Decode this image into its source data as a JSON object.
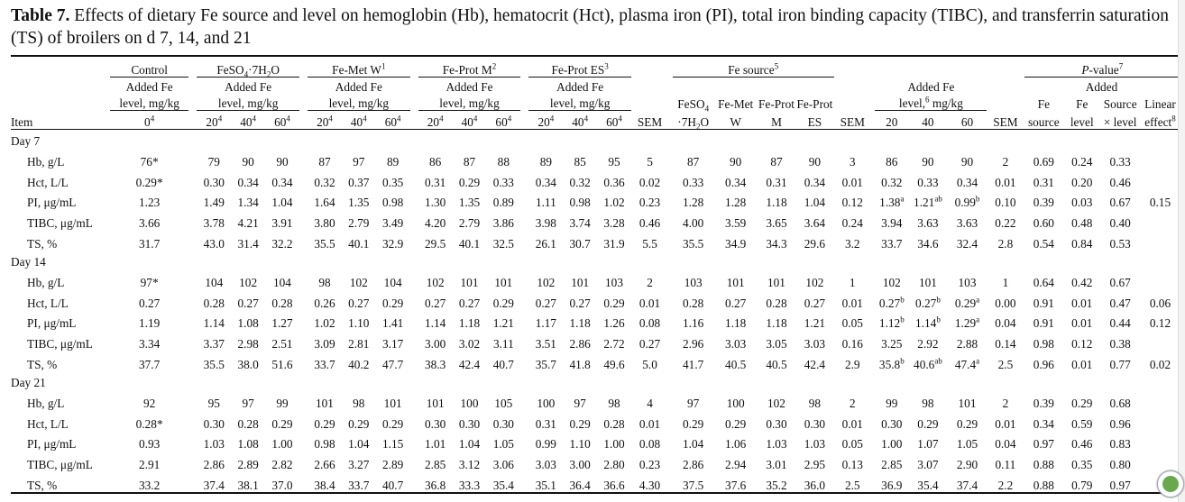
{
  "caption": {
    "label": "Table 7.",
    "text": " Effects of dietary Fe source and level on hemoglobin (Hb), hematocrit (Hct), plasma iron (PI), total iron binding capacity (TIBC), and transferrin saturation (TS) of broilers on d 7, 14, and 21"
  },
  "header": {
    "control": "Control",
    "feso4": "FeSO",
    "feso4_sub": "4",
    "feso4_rest": "·7H",
    "feso4_sub2": "2",
    "feso4_end": "O",
    "femet": "Fe-Met W",
    "femet_sup": "1",
    "feprotm": "Fe-Prot M",
    "feprotm_sup": "2",
    "feprotes": "Fe-Prot ES",
    "feprotes_sup": "3",
    "fesource": "Fe source",
    "fesource_sup": "5",
    "pvalue": "P",
    "pvalue_rest": "-value",
    "pvalue_sup": "7",
    "added_fe": "Added Fe",
    "level_unit": "level, mg/kg",
    "level_unit_sup": "",
    "level6_a": "level,",
    "level6_sup": "6",
    "level6_b": " mg/kg",
    "added": "Added",
    "item": "Item",
    "ctrl_level": "0",
    "ctrl_level_sup": "4",
    "lvl20": "20",
    "lvl40": "40",
    "lvl60": "60",
    "lvl_sup": "4",
    "sem": "SEM",
    "src_feso4_a": "FeSO",
    "src_feso4_sub": "4",
    "src_feso4_b": "·7H",
    "src_feso4_sub2": "2",
    "src_feso4_c": "O",
    "src_femet_a": "Fe-Met",
    "src_femet_b": "W",
    "src_feprot_a": "Fe-Prot",
    "src_feprot_m": "M",
    "src_feprot_es": "ES",
    "pv_fe_a": "Fe",
    "pv_fe_b": "source",
    "pv_lvl_a": "Fe",
    "pv_lvl_b": "level",
    "pv_int_a": "Source",
    "pv_int_b": "× level",
    "pv_lin_a": "Linear",
    "pv_lin_b": "effect",
    "pv_lin_sup": "8"
  },
  "days": [
    {
      "label": "Day 7",
      "rows": [
        {
          "item": "Hb, g/L",
          "c": "76*",
          "a": [
            "79",
            "90",
            "90"
          ],
          "b": [
            "87",
            "97",
            "89"
          ],
          "m": [
            "86",
            "87",
            "88"
          ],
          "e": [
            "89",
            "85",
            "95"
          ],
          "sem1": "5",
          "src": [
            "87",
            "90",
            "87",
            "90"
          ],
          "sem2": "3",
          "lv": [
            [
              "86",
              ""
            ],
            [
              "90",
              ""
            ],
            [
              "90",
              ""
            ]
          ],
          "sem3": "2",
          "p": [
            "0.69",
            "0.24",
            "0.33",
            ""
          ]
        },
        {
          "item": "Hct, L/L",
          "c": "0.29*",
          "a": [
            "0.30",
            "0.34",
            "0.34"
          ],
          "b": [
            "0.32",
            "0.37",
            "0.35"
          ],
          "m": [
            "0.31",
            "0.29",
            "0.33"
          ],
          "e": [
            "0.34",
            "0.32",
            "0.36"
          ],
          "sem1": "0.02",
          "src": [
            "0.33",
            "0.34",
            "0.31",
            "0.34"
          ],
          "sem2": "0.01",
          "lv": [
            [
              "0.32",
              ""
            ],
            [
              "0.33",
              ""
            ],
            [
              "0.34",
              ""
            ]
          ],
          "sem3": "0.01",
          "p": [
            "0.31",
            "0.20",
            "0.46",
            ""
          ]
        },
        {
          "item": "PI, μg/mL",
          "c": "1.23",
          "a": [
            "1.49",
            "1.34",
            "1.04"
          ],
          "b": [
            "1.64",
            "1.35",
            "0.98"
          ],
          "m": [
            "1.30",
            "1.35",
            "0.89"
          ],
          "e": [
            "1.11",
            "0.98",
            "1.02"
          ],
          "sem1": "0.23",
          "src": [
            "1.28",
            "1.28",
            "1.18",
            "1.04"
          ],
          "sem2": "0.12",
          "lv": [
            [
              "1.38",
              "a"
            ],
            [
              "1.21",
              "ab"
            ],
            [
              "0.99",
              "b"
            ]
          ],
          "sem3": "0.10",
          "p": [
            "0.39",
            "0.03",
            "0.67",
            "0.15"
          ]
        },
        {
          "item": "TIBC, μg/mL",
          "c": "3.66",
          "a": [
            "3.78",
            "4.21",
            "3.91"
          ],
          "b": [
            "3.80",
            "2.79",
            "3.49"
          ],
          "m": [
            "4.20",
            "2.79",
            "3.86"
          ],
          "e": [
            "3.98",
            "3.74",
            "3.28"
          ],
          "sem1": "0.46",
          "src": [
            "4.00",
            "3.59",
            "3.65",
            "3.64"
          ],
          "sem2": "0.24",
          "lv": [
            [
              "3.94",
              ""
            ],
            [
              "3.63",
              ""
            ],
            [
              "3.63",
              ""
            ]
          ],
          "sem3": "0.22",
          "p": [
            "0.60",
            "0.48",
            "0.40",
            ""
          ]
        },
        {
          "item": "TS, %",
          "c": "31.7",
          "a": [
            "43.0",
            "31.4",
            "32.2"
          ],
          "b": [
            "35.5",
            "40.1",
            "32.9"
          ],
          "m": [
            "29.5",
            "40.1",
            "32.5"
          ],
          "e": [
            "26.1",
            "30.7",
            "31.9"
          ],
          "sem1": "5.5",
          "src": [
            "35.5",
            "34.9",
            "34.3",
            "29.6"
          ],
          "sem2": "3.2",
          "lv": [
            [
              "33.7",
              ""
            ],
            [
              "34.6",
              ""
            ],
            [
              "32.4",
              ""
            ]
          ],
          "sem3": "2.8",
          "p": [
            "0.54",
            "0.84",
            "0.53",
            ""
          ]
        }
      ]
    },
    {
      "label": "Day 14",
      "rows": [
        {
          "item": "Hb, g/L",
          "c": "97*",
          "a": [
            "104",
            "102",
            "104"
          ],
          "b": [
            "98",
            "102",
            "104"
          ],
          "m": [
            "102",
            "101",
            "101"
          ],
          "e": [
            "102",
            "101",
            "103"
          ],
          "sem1": "2",
          "src": [
            "103",
            "101",
            "101",
            "102"
          ],
          "sem2": "1",
          "lv": [
            [
              "102",
              ""
            ],
            [
              "101",
              ""
            ],
            [
              "103",
              ""
            ]
          ],
          "sem3": "1",
          "p": [
            "0.64",
            "0.42",
            "0.67",
            ""
          ]
        },
        {
          "item": "Hct, L/L",
          "c": "0.27",
          "a": [
            "0.28",
            "0.27",
            "0.28"
          ],
          "b": [
            "0.26",
            "0.27",
            "0.29"
          ],
          "m": [
            "0.27",
            "0.27",
            "0.29"
          ],
          "e": [
            "0.27",
            "0.27",
            "0.29"
          ],
          "sem1": "0.01",
          "src": [
            "0.28",
            "0.27",
            "0.28",
            "0.27"
          ],
          "sem2": "0.01",
          "lv": [
            [
              "0.27",
              "b"
            ],
            [
              "0.27",
              "b"
            ],
            [
              "0.29",
              "a"
            ]
          ],
          "sem3": "0.00",
          "p": [
            "0.91",
            "0.01",
            "0.47",
            "0.06"
          ]
        },
        {
          "item": "PI, μg/mL",
          "c": "1.19",
          "a": [
            "1.14",
            "1.08",
            "1.27"
          ],
          "b": [
            "1.02",
            "1.10",
            "1.41"
          ],
          "m": [
            "1.14",
            "1.18",
            "1.21"
          ],
          "e": [
            "1.17",
            "1.18",
            "1.26"
          ],
          "sem1": "0.08",
          "src": [
            "1.16",
            "1.18",
            "1.18",
            "1.21"
          ],
          "sem2": "0.05",
          "lv": [
            [
              "1.12",
              "b"
            ],
            [
              "1.14",
              "b"
            ],
            [
              "1.29",
              "a"
            ]
          ],
          "sem3": "0.04",
          "p": [
            "0.91",
            "0.01",
            "0.44",
            "0.12"
          ]
        },
        {
          "item": "TIBC, μg/mL",
          "c": "3.34",
          "a": [
            "3.37",
            "2.98",
            "2.51"
          ],
          "b": [
            "3.09",
            "2.81",
            "3.17"
          ],
          "m": [
            "3.00",
            "3.02",
            "3.11"
          ],
          "e": [
            "3.51",
            "2.86",
            "2.72"
          ],
          "sem1": "0.27",
          "src": [
            "2.96",
            "3.03",
            "3.05",
            "3.03"
          ],
          "sem2": "0.16",
          "lv": [
            [
              "3.25",
              ""
            ],
            [
              "2.92",
              ""
            ],
            [
              "2.88",
              ""
            ]
          ],
          "sem3": "0.14",
          "p": [
            "0.98",
            "0.12",
            "0.38",
            ""
          ]
        },
        {
          "item": "TS, %",
          "c": "37.7",
          "a": [
            "35.5",
            "38.0",
            "51.6"
          ],
          "b": [
            "33.7",
            "40.2",
            "47.7"
          ],
          "m": [
            "38.3",
            "42.4",
            "40.7"
          ],
          "e": [
            "35.7",
            "41.8",
            "49.6"
          ],
          "sem1": "5.0",
          "src": [
            "41.7",
            "40.5",
            "40.5",
            "42.4"
          ],
          "sem2": "2.9",
          "lv": [
            [
              "35.8",
              "b"
            ],
            [
              "40.6",
              "ab"
            ],
            [
              "47.4",
              "a"
            ]
          ],
          "sem3": "2.5",
          "p": [
            "0.96",
            "0.01",
            "0.77",
            "0.02"
          ]
        }
      ]
    },
    {
      "label": "Day 21",
      "rows": [
        {
          "item": "Hb, g/L",
          "c": "92",
          "a": [
            "95",
            "97",
            "99"
          ],
          "b": [
            "101",
            "98",
            "101"
          ],
          "m": [
            "101",
            "100",
            "105"
          ],
          "e": [
            "100",
            "97",
            "98"
          ],
          "sem1": "4",
          "src": [
            "97",
            "100",
            "102",
            "98"
          ],
          "sem2": "2",
          "lv": [
            [
              "99",
              ""
            ],
            [
              "98",
              ""
            ],
            [
              "101",
              ""
            ]
          ],
          "sem3": "2",
          "p": [
            "0.39",
            "0.29",
            "0.68",
            ""
          ]
        },
        {
          "item": "Hct, L/L",
          "c": "0.28*",
          "a": [
            "0.30",
            "0.28",
            "0.29"
          ],
          "b": [
            "0.29",
            "0.29",
            "0.29"
          ],
          "m": [
            "0.30",
            "0.30",
            "0.30"
          ],
          "e": [
            "0.31",
            "0.29",
            "0.28"
          ],
          "sem1": "0.01",
          "src": [
            "0.29",
            "0.29",
            "0.30",
            "0.30"
          ],
          "sem2": "0.01",
          "lv": [
            [
              "0.30",
              ""
            ],
            [
              "0.29",
              ""
            ],
            [
              "0.29",
              ""
            ]
          ],
          "sem3": "0.01",
          "p": [
            "0.34",
            "0.59",
            "0.96",
            ""
          ]
        },
        {
          "item": "PI, μg/mL",
          "c": "0.93",
          "a": [
            "1.03",
            "1.08",
            "1.00"
          ],
          "b": [
            "0.98",
            "1.04",
            "1.15"
          ],
          "m": [
            "1.01",
            "1.04",
            "1.05"
          ],
          "e": [
            "0.99",
            "1.10",
            "1.00"
          ],
          "sem1": "0.08",
          "src": [
            "1.04",
            "1.06",
            "1.03",
            "1.03"
          ],
          "sem2": "0.05",
          "lv": [
            [
              "1.00",
              ""
            ],
            [
              "1.07",
              ""
            ],
            [
              "1.05",
              ""
            ]
          ],
          "sem3": "0.04",
          "p": [
            "0.97",
            "0.46",
            "0.83",
            ""
          ]
        },
        {
          "item": "TIBC, μg/mL",
          "c": "2.91",
          "a": [
            "2.86",
            "2.89",
            "2.82"
          ],
          "b": [
            "2.66",
            "3.27",
            "2.89"
          ],
          "m": [
            "2.85",
            "3.12",
            "3.06"
          ],
          "e": [
            "3.03",
            "3.00",
            "2.80"
          ],
          "sem1": "0.23",
          "src": [
            "2.86",
            "2.94",
            "3.01",
            "2.95"
          ],
          "sem2": "0.13",
          "lv": [
            [
              "2.85",
              ""
            ],
            [
              "3.07",
              ""
            ],
            [
              "2.90",
              ""
            ]
          ],
          "sem3": "0.11",
          "p": [
            "0.88",
            "0.35",
            "0.80",
            ""
          ]
        },
        {
          "item": "TS, %",
          "c": "33.2",
          "a": [
            "37.4",
            "38.1",
            "37.0"
          ],
          "b": [
            "38.4",
            "33.7",
            "40.7"
          ],
          "m": [
            "36.8",
            "33.3",
            "35.4"
          ],
          "e": [
            "35.1",
            "36.4",
            "36.6"
          ],
          "sem1": "4.30",
          "src": [
            "37.5",
            "37.6",
            "35.2",
            "36.0"
          ],
          "sem2": "2.5",
          "lv": [
            [
              "36.9",
              ""
            ],
            [
              "35.4",
              ""
            ],
            [
              "37.4",
              ""
            ]
          ],
          "sem3": "2.2",
          "p": [
            "0.88",
            "0.79",
            "0.97",
            ""
          ]
        }
      ]
    }
  ]
}
